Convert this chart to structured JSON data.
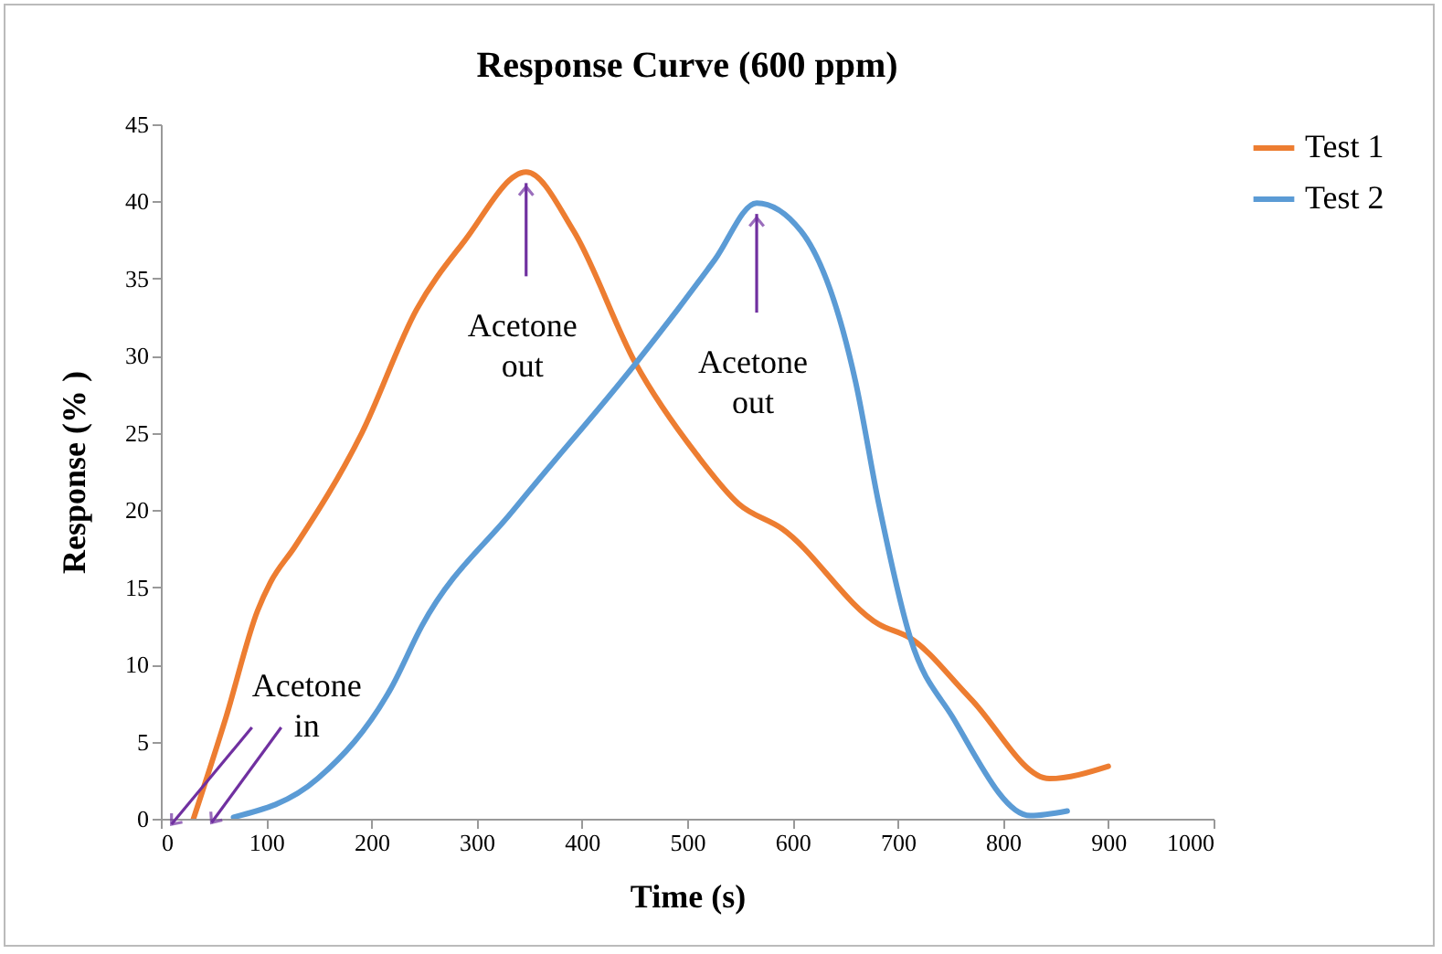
{
  "chart_data": {
    "type": "line",
    "title": "Response Curve (600 ppm)",
    "xlabel": "Time (s)",
    "ylabel": "Response (% )",
    "xlim": [
      0,
      1000
    ],
    "xticks": [
      0,
      100,
      200,
      300,
      400,
      500,
      600,
      700,
      800,
      900,
      1000
    ],
    "ylim": [
      0,
      45
    ],
    "yticks": [
      0,
      5,
      10,
      15,
      20,
      25,
      30,
      35,
      40,
      45
    ],
    "grid": false,
    "legend": "right",
    "line_style": "solid",
    "marker": "none",
    "series": [
      {
        "name": "Test 1",
        "color": "#ed7d31",
        "x": [
          31,
          62,
          92,
          104,
          127,
          191,
          243,
          288,
          347,
          392,
          451,
          509,
          549,
          590,
          682,
          712,
          769,
          844,
          900
        ],
        "values": [
          0,
          6.6,
          13.5,
          15.3,
          17.6,
          25,
          33,
          37.4,
          41.9,
          38.1,
          29.5,
          23.6,
          20.4,
          18.8,
          12.6,
          11.7,
          7.8,
          2.6,
          3.4
        ]
      },
      {
        "name": "Test 2",
        "color": "#5b9bd5",
        "x": [
          69,
          149,
          219,
          248,
          335,
          451,
          491,
          526,
          566,
          608,
          660,
          682,
          712,
          752,
          826,
          861
        ],
        "values": [
          0.1,
          2.6,
          8.5,
          12.5,
          20,
          29.5,
          33,
          36.2,
          39.9,
          38.1,
          28.3,
          20.4,
          11.7,
          6.6,
          0.2,
          0.5
        ]
      }
    ],
    "annotations": [
      {
        "text": "Acetone in",
        "x": 31,
        "y": 0
      },
      {
        "text": "Acetone out",
        "x": 347,
        "y": 41.9
      },
      {
        "text": "Acetone out",
        "x": 566,
        "y": 39.9
      }
    ]
  }
}
